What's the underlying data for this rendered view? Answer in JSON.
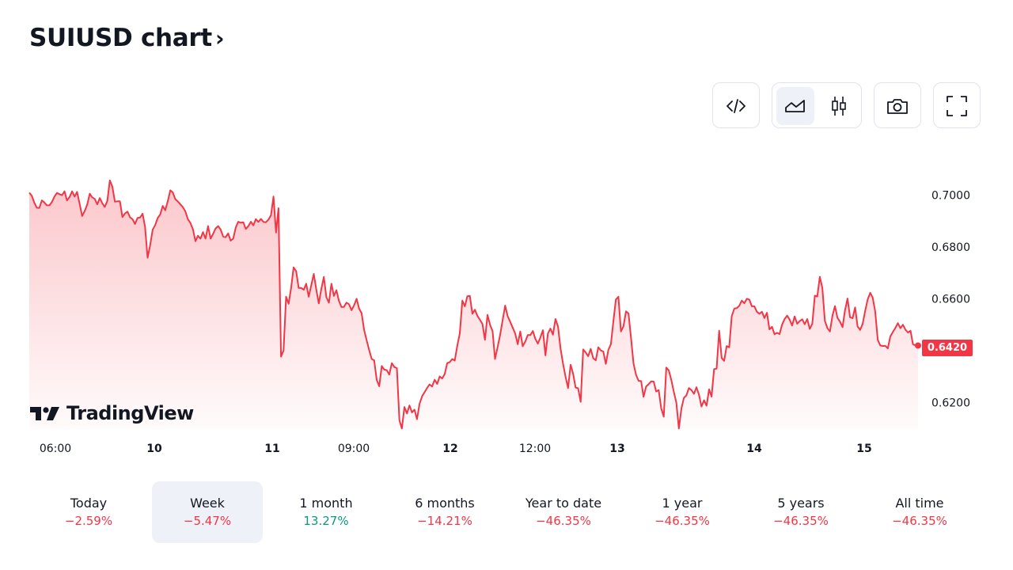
{
  "header": {
    "title": "SUIUSD chart",
    "chevron": "›"
  },
  "toolbar": {
    "buttons": [
      {
        "name": "embed-code-icon",
        "label": "</>"
      },
      {
        "name": "line-chart-icon",
        "active": true
      },
      {
        "name": "candles-icon"
      },
      {
        "name": "camera-icon"
      },
      {
        "name": "fullscreen-icon"
      }
    ]
  },
  "watermark": {
    "text": "TradingView"
  },
  "chart_data": {
    "type": "area",
    "symbol": "SUIUSD",
    "line_color": "#f23645",
    "fill_color": "#f23645",
    "x_ticks": [
      {
        "label": "06:00",
        "bold": false
      },
      {
        "label": "10",
        "bold": true
      },
      {
        "label": "11",
        "bold": true
      },
      {
        "label": "09:00",
        "bold": false
      },
      {
        "label": "12",
        "bold": true
      },
      {
        "label": "12:00",
        "bold": false
      },
      {
        "label": "13",
        "bold": true
      },
      {
        "label": "14",
        "bold": true
      },
      {
        "label": "15",
        "bold": true
      }
    ],
    "y_ticks": [
      "0.7000",
      "0.6800",
      "0.6600",
      "0.6200"
    ],
    "ylim": [
      0.6098,
      0.7187
    ],
    "last_price": "0.6420",
    "values": [
      0.7009,
      0.6997,
      0.697,
      0.6951,
      0.695,
      0.6979,
      0.6971,
      0.696,
      0.696,
      0.6973,
      0.6994,
      0.7008,
      0.7003,
      0.6999,
      0.7014,
      0.6979,
      0.6992,
      0.7014,
      0.6994,
      0.7012,
      0.6966,
      0.6919,
      0.6938,
      0.6963,
      0.7005,
      0.6991,
      0.6985,
      0.6964,
      0.6988,
      0.6968,
      0.6954,
      0.6977,
      0.7056,
      0.7032,
      0.6974,
      0.6976,
      0.6976,
      0.6915,
      0.6929,
      0.6936,
      0.6914,
      0.6907,
      0.6888,
      0.6912,
      0.6913,
      0.6928,
      0.6877,
      0.6758,
      0.6806,
      0.6866,
      0.6884,
      0.6911,
      0.6925,
      0.6958,
      0.6941,
      0.6976,
      0.7018,
      0.701,
      0.6984,
      0.6975,
      0.6964,
      0.6953,
      0.6937,
      0.6907,
      0.6892,
      0.6868,
      0.6822,
      0.6843,
      0.6832,
      0.6857,
      0.6832,
      0.688,
      0.6832,
      0.685,
      0.6871,
      0.688,
      0.6867,
      0.684,
      0.6837,
      0.6852,
      0.6824,
      0.6832,
      0.6875,
      0.6897,
      0.6893,
      0.6895,
      0.6869,
      0.688,
      0.6897,
      0.6883,
      0.6907,
      0.6896,
      0.6908,
      0.6896,
      0.6895,
      0.6905,
      0.6922,
      0.6994,
      0.6855,
      0.6949,
      0.6377,
      0.6401,
      0.6608,
      0.6581,
      0.6643,
      0.6721,
      0.6707,
      0.6642,
      0.6642,
      0.6635,
      0.6658,
      0.6608,
      0.6652,
      0.6696,
      0.6635,
      0.6582,
      0.6638,
      0.6684,
      0.6606,
      0.6585,
      0.6658,
      0.6611,
      0.6633,
      0.6592,
      0.6568,
      0.6569,
      0.6585,
      0.6579,
      0.6556,
      0.6575,
      0.66,
      0.6562,
      0.6545,
      0.648,
      0.644,
      0.6402,
      0.6368,
      0.6363,
      0.6288,
      0.6263,
      0.6341,
      0.6327,
      0.6325,
      0.6308,
      0.6352,
      0.6337,
      0.6333,
      0.6132,
      0.61,
      0.6183,
      0.6158,
      0.6189,
      0.6162,
      0.6173,
      0.6136,
      0.6195,
      0.6224,
      0.624,
      0.6256,
      0.627,
      0.6262,
      0.6288,
      0.6272,
      0.6301,
      0.6293,
      0.631,
      0.6352,
      0.6356,
      0.6368,
      0.6362,
      0.6419,
      0.6467,
      0.6593,
      0.6571,
      0.661,
      0.6611,
      0.6542,
      0.6558,
      0.6534,
      0.6519,
      0.6503,
      0.6442,
      0.6538,
      0.65,
      0.6476,
      0.6368,
      0.6413,
      0.646,
      0.6517,
      0.6574,
      0.6534,
      0.6512,
      0.6489,
      0.6466,
      0.6425,
      0.6474,
      0.6417,
      0.6435,
      0.646,
      0.646,
      0.6476,
      0.6446,
      0.6427,
      0.6451,
      0.6479,
      0.6382,
      0.6466,
      0.6485,
      0.6462,
      0.6522,
      0.6493,
      0.6408,
      0.6351,
      0.63,
      0.6256,
      0.6346,
      0.6311,
      0.6258,
      0.6255,
      0.6203,
      0.6405,
      0.6393,
      0.6379,
      0.6407,
      0.6371,
      0.6363,
      0.6413,
      0.6401,
      0.6397,
      0.6349,
      0.6403,
      0.6425,
      0.6515,
      0.6597,
      0.6608,
      0.6474,
      0.6494,
      0.6552,
      0.6543,
      0.6451,
      0.6351,
      0.6307,
      0.6284,
      0.6283,
      0.6222,
      0.6262,
      0.6271,
      0.6282,
      0.6281,
      0.6243,
      0.6248,
      0.6178,
      0.6146,
      0.6335,
      0.6324,
      0.6288,
      0.6242,
      0.62,
      0.61,
      0.6177,
      0.6218,
      0.6228,
      0.6256,
      0.6248,
      0.6234,
      0.6259,
      0.6231,
      0.6185,
      0.6209,
      0.6188,
      0.6251,
      0.6223,
      0.6329,
      0.6331,
      0.6477,
      0.6372,
      0.6361,
      0.6418,
      0.6413,
      0.6533,
      0.6562,
      0.6564,
      0.6573,
      0.6593,
      0.6583,
      0.66,
      0.6597,
      0.6571,
      0.6571,
      0.655,
      0.6542,
      0.655,
      0.6526,
      0.6546,
      0.6482,
      0.6492,
      0.6463,
      0.6469,
      0.6464,
      0.65,
      0.6522,
      0.6535,
      0.652,
      0.6497,
      0.6532,
      0.6504,
      0.6514,
      0.6521,
      0.6502,
      0.6522,
      0.6484,
      0.6504,
      0.6612,
      0.6609,
      0.6685,
      0.6642,
      0.6515,
      0.6487,
      0.6474,
      0.6534,
      0.6572,
      0.6527,
      0.6512,
      0.6491,
      0.6555,
      0.6601,
      0.6529,
      0.6525,
      0.6567,
      0.6494,
      0.648,
      0.6503,
      0.6553,
      0.6598,
      0.6623,
      0.6605,
      0.6551,
      0.6442,
      0.642,
      0.6418,
      0.6419,
      0.6409,
      0.6455,
      0.6472,
      0.6488,
      0.6506,
      0.6487,
      0.65,
      0.6481,
      0.647,
      0.6477,
      0.6425,
      0.642,
      0.642
    ]
  },
  "periods": [
    {
      "label": "Today",
      "value": "−2.59%",
      "trend": "neg",
      "active": false
    },
    {
      "label": "Week",
      "value": "−5.47%",
      "trend": "neg",
      "active": true
    },
    {
      "label": "1 month",
      "value": "13.27%",
      "trend": "pos",
      "active": false
    },
    {
      "label": "6 months",
      "value": "−14.21%",
      "trend": "neg",
      "active": false
    },
    {
      "label": "Year to date",
      "value": "−46.35%",
      "trend": "neg",
      "active": false
    },
    {
      "label": "1 year",
      "value": "−46.35%",
      "trend": "neg",
      "active": false
    },
    {
      "label": "5 years",
      "value": "−46.35%",
      "trend": "neg",
      "active": false
    },
    {
      "label": "All time",
      "value": "−46.35%",
      "trend": "neg",
      "active": false
    }
  ]
}
